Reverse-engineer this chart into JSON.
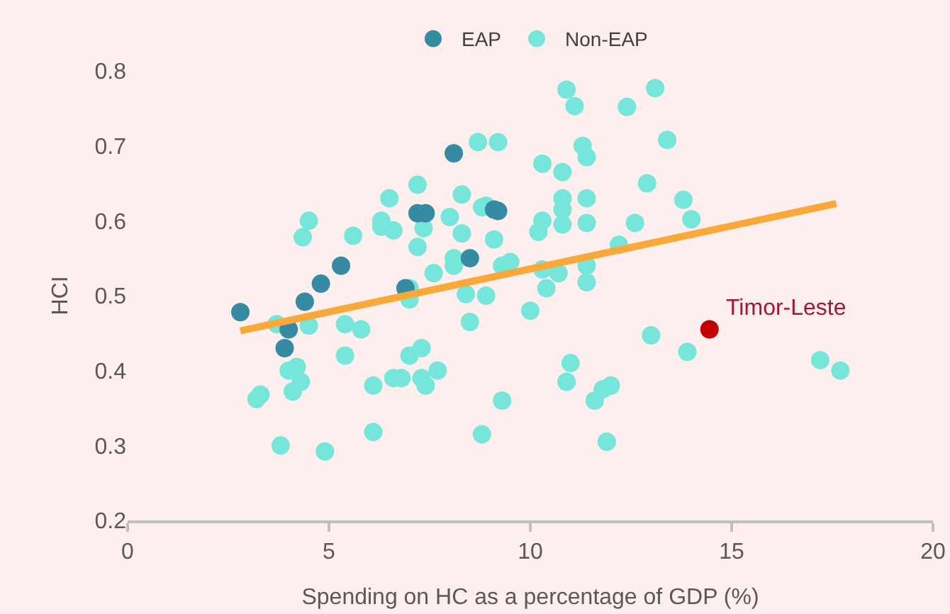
{
  "chart_data": {
    "type": "scatter",
    "xlabel": "Spending on HC as a percentage of GDP (%)",
    "ylabel": "HCI",
    "xlim": [
      0,
      20
    ],
    "xticks": [
      0,
      5,
      10,
      15,
      20
    ],
    "ylim": [
      0.2,
      0.8
    ],
    "yticks": [
      0.2,
      0.3,
      0.4,
      0.5,
      0.6,
      0.7,
      0.8
    ],
    "grid": false,
    "legend": "top",
    "marker": "circle",
    "series": [
      {
        "name": "EAP",
        "color": "#368ba3",
        "x": [
          2.8,
          3.9,
          4.0,
          4.4,
          4.8,
          5.3,
          6.9,
          7.2,
          7.4,
          8.1,
          8.5,
          9.1,
          9.2
        ],
        "values": [
          0.478,
          0.43,
          0.455,
          0.492,
          0.516,
          0.54,
          0.51,
          0.61,
          0.61,
          0.69,
          0.55,
          0.615,
          0.613
        ]
      },
      {
        "name": "Non-EAP",
        "color": "#76e6da",
        "x": [
          3.2,
          3.3,
          3.7,
          3.8,
          4.0,
          4.1,
          4.2,
          4.3,
          4.35,
          4.5,
          4.5,
          4.9,
          5.6,
          5.4,
          5.4,
          5.8,
          6.1,
          6.1,
          6.3,
          6.3,
          6.5,
          6.6,
          6.6,
          6.8,
          7.0,
          7.0,
          7.0,
          7.2,
          7.2,
          7.3,
          7.3,
          7.35,
          7.4,
          7.6,
          7.7,
          8.0,
          8.1,
          8.1,
          8.3,
          8.3,
          8.4,
          8.5,
          8.7,
          8.8,
          8.8,
          8.9,
          8.9,
          9.1,
          9.3,
          9.2,
          9.3,
          9.5,
          10.0,
          10.2,
          10.3,
          10.3,
          10.4,
          10.3,
          10.7,
          10.8,
          10.8,
          10.8,
          10.8,
          10.9,
          10.9,
          11.1,
          11.0,
          11.4,
          11.3,
          11.4,
          11.4,
          11.4,
          11.4,
          11.6,
          11.8,
          12.0,
          11.9,
          12.2,
          12.4,
          12.6,
          12.9,
          13.0,
          13.1,
          13.4,
          13.8,
          13.9,
          14.0,
          17.2,
          17.7
        ],
        "values": [
          0.362,
          0.368,
          0.462,
          0.3,
          0.4,
          0.372,
          0.405,
          0.385,
          0.578,
          0.6,
          0.46,
          0.292,
          0.58,
          0.42,
          0.462,
          0.455,
          0.38,
          0.318,
          0.6,
          0.592,
          0.63,
          0.39,
          0.587,
          0.39,
          0.42,
          0.495,
          0.51,
          0.565,
          0.648,
          0.43,
          0.39,
          0.59,
          0.38,
          0.53,
          0.4,
          0.605,
          0.55,
          0.54,
          0.583,
          0.635,
          0.502,
          0.465,
          0.705,
          0.315,
          0.618,
          0.5,
          0.62,
          0.575,
          0.36,
          0.705,
          0.54,
          0.545,
          0.48,
          0.585,
          0.6,
          0.676,
          0.51,
          0.535,
          0.53,
          0.665,
          0.63,
          0.615,
          0.595,
          0.385,
          0.775,
          0.753,
          0.41,
          0.54,
          0.7,
          0.685,
          0.597,
          0.518,
          0.63,
          0.36,
          0.375,
          0.38,
          0.305,
          0.568,
          0.752,
          0.597,
          0.65,
          0.447,
          0.777,
          0.708,
          0.628,
          0.425,
          0.602,
          0.414,
          0.4
        ]
      },
      {
        "color": "#c00000",
        "x": [
          14.45
        ],
        "values": [
          0.455
        ]
      },
      {
        "type": "line",
        "color": "#f9a83a",
        "marker": "none",
        "x": [
          2.8,
          17.6
        ],
        "values": [
          0.453,
          0.623
        ]
      }
    ],
    "annotations": [
      {
        "text": "Timor-Leste",
        "x": 14.45,
        "y": 0.455
      }
    ]
  }
}
